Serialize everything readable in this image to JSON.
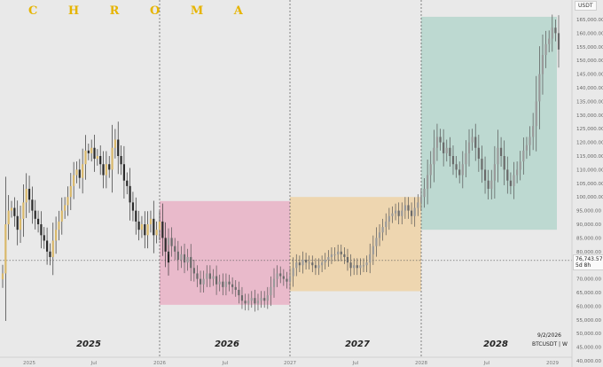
{
  "brand": {
    "name": "C H R O M A",
    "color": "#e6b400"
  },
  "price_scale": {
    "unit": "USDT",
    "ticks": [
      "165,000.00",
      "160,000.00",
      "155,000.00",
      "150,000.00",
      "145,000.00",
      "140,000.00",
      "135,000.00",
      "130,000.00",
      "125,000.00",
      "120,000.00",
      "115,000.00",
      "110,000.00",
      "105,000.00",
      "100,000.00",
      "95,000.00",
      "90,000.00",
      "85,000.00",
      "80,000.00",
      "75,000.00",
      "70,000.00",
      "65,000.00",
      "60,000.00",
      "55,000.00",
      "50,000.00",
      "45,000.00",
      "40,000.00"
    ],
    "current_price_label": "76,743.57",
    "current_price_sub": "5d 8h"
  },
  "footer": {
    "date": "9/2/2026",
    "symbol": "BTCUSDT | W"
  },
  "chart_data": {
    "type": "candlestick",
    "title": "",
    "symbol": "BTCUSDT",
    "interval": "W",
    "y_unit": "USDT",
    "ylim": [
      40000,
      166000
    ],
    "current_price": 76743.57,
    "time_labels": [
      "2025",
      "Jul",
      "2026",
      "Jul",
      "2027",
      "Jul",
      "2028",
      "Jul",
      "2029"
    ],
    "year_labels": [
      "2025",
      "2026",
      "2027",
      "2028"
    ],
    "zones": [
      {
        "label": "2026",
        "x_from": "2026",
        "x_to": "2027",
        "y_low": 60500,
        "y_high": 98500,
        "color": "#e9b1c6"
      },
      {
        "label": "2027",
        "x_from": "2027",
        "x_to": "2028",
        "y_low": 65500,
        "y_high": 100000,
        "color": "#efd2a6"
      },
      {
        "label": "2028",
        "x_from": "2028",
        "x_to": "Jul",
        "y_low": 88000,
        "y_high": 166000,
        "color": "#b5d6cd"
      }
    ],
    "actual_series": {
      "name": "",
      "period": "2025 to Feb 2026",
      "values": [
        72000,
        90000,
        95000,
        96000,
        93000,
        88000,
        92000,
        98000,
        103000,
        99000,
        95000,
        92000,
        90000,
        86000,
        84000,
        80000,
        78000,
        84000,
        88000,
        91000,
        95000,
        97000,
        100000,
        104000,
        108000,
        110000,
        107000,
        112000,
        117000,
        116000,
        118000,
        114000,
        115000,
        112000,
        108000,
        112000,
        110000,
        118000,
        121000,
        115000,
        112000,
        106000,
        104000,
        98000,
        95000,
        91000,
        88000,
        90000,
        86000,
        90000,
        92000,
        86000,
        88000,
        91000,
        85000,
        80000,
        76000
      ]
    },
    "projection_series": {
      "name": "",
      "period": "Feb 2026 to 2029",
      "values": [
        85000,
        82000,
        80000,
        77000,
        79000,
        76000,
        78000,
        74000,
        72000,
        70000,
        68000,
        70000,
        72000,
        70000,
        71000,
        68000,
        69000,
        67000,
        69000,
        68000,
        67000,
        66000,
        64000,
        62000,
        61000,
        62000,
        63000,
        61000,
        62000,
        63000,
        62000,
        64000,
        67000,
        70000,
        72000,
        71000,
        70000,
        69000,
        71000,
        74000,
        76000,
        75000,
        77000,
        76000,
        76000,
        75000,
        74000,
        75000,
        76000,
        77000,
        78000,
        79000,
        79000,
        80000,
        79000,
        78000,
        76000,
        74000,
        75000,
        74000,
        75000,
        75000,
        76000,
        79000,
        82000,
        85000,
        87000,
        89000,
        91000,
        93000,
        94000,
        95000,
        93000,
        95000,
        97000,
        95000,
        93000,
        96000,
        98000,
        100000,
        103000,
        108000,
        112000,
        118000,
        122000,
        120000,
        116000,
        118000,
        115000,
        112000,
        110000,
        108000,
        112000,
        116000,
        120000,
        122000,
        118000,
        114000,
        110000,
        106000,
        103000,
        106000,
        112000,
        118000,
        115000,
        110000,
        106000,
        104000,
        108000,
        110000,
        113000,
        117000,
        119000,
        122000,
        126000,
        135000,
        145000,
        152000,
        156000,
        158000,
        162000,
        160000,
        154000
      ]
    }
  }
}
